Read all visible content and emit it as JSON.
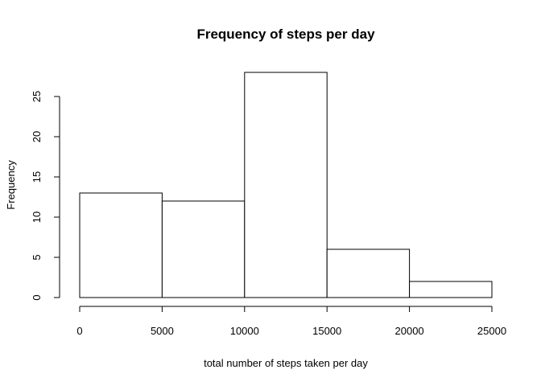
{
  "chart_data": {
    "type": "bar",
    "title": "Frequency of steps per day",
    "xlabel": "total number of steps taken per day",
    "ylabel": "Frequency",
    "bins": [
      {
        "start": 0,
        "end": 5000,
        "count": 13
      },
      {
        "start": 5000,
        "end": 10000,
        "count": 12
      },
      {
        "start": 10000,
        "end": 15000,
        "count": 28
      },
      {
        "start": 15000,
        "end": 20000,
        "count": 6
      },
      {
        "start": 20000,
        "end": 25000,
        "count": 2
      }
    ],
    "xlim": [
      0,
      25000
    ],
    "ylim": [
      0,
      28
    ],
    "x_ticks": [
      0,
      5000,
      10000,
      15000,
      20000,
      25000
    ],
    "y_ticks": [
      0,
      5,
      10,
      15,
      20,
      25
    ],
    "x_tick_labels": [
      "0",
      "5000",
      "10000",
      "15000",
      "20000",
      "25000"
    ],
    "y_tick_labels": [
      "0",
      "5",
      "10",
      "15",
      "20",
      "25"
    ],
    "grid": false,
    "bar_fill": "#ffffff",
    "bar_stroke": "#000000"
  }
}
